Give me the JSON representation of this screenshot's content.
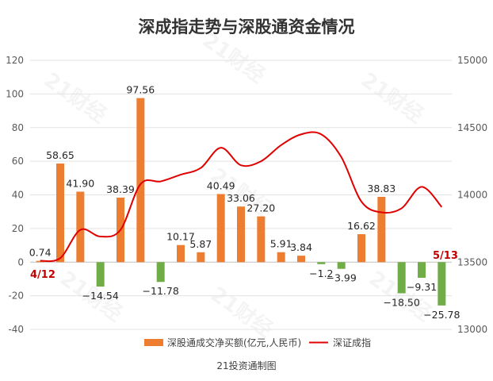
{
  "chart_data": {
    "type": "bar+line",
    "title": "深成指走势与深股通资金情况",
    "watermark": "21财经",
    "credit": "21投资通制图",
    "y_left": {
      "min": -40,
      "max": 120,
      "step": 20,
      "ticks": [
        "-40",
        "-20",
        "0",
        "20",
        "40",
        "60",
        "80",
        "100",
        "120"
      ]
    },
    "y_right": {
      "min": 13000,
      "max": 15000,
      "step": 500,
      "ticks": [
        "13000",
        "13500",
        "14000",
        "14500",
        "15000"
      ]
    },
    "bar_series": {
      "name": "深股通成交净买额(亿元,人民币)",
      "colors": {
        "positive": "#ed7d31",
        "negative": "#70ad47"
      },
      "values": [
        0.74,
        58.65,
        41.9,
        -14.54,
        38.39,
        97.56,
        -11.78,
        10.17,
        5.87,
        40.49,
        33.06,
        27.2,
        5.91,
        3.84,
        -1.2,
        -3.99,
        16.62,
        38.83,
        -18.5,
        -9.31,
        -25.78
      ],
      "labels": [
        "0.74",
        "58.65",
        "41.90",
        "−14.54",
        "38.39",
        "97.56",
        "−11.78",
        "10.17",
        "5.87",
        "40.49",
        "33.06",
        "27.20",
        "5.91",
        "3.84",
        "−1.2",
        "−3.99",
        "16.62",
        "38.83",
        "−18.50",
        "−9.31",
        "−25.78"
      ]
    },
    "line_series": {
      "name": "深证成指",
      "color": "#e00000",
      "values": [
        13510,
        13530,
        13740,
        13690,
        13740,
        14080,
        14100,
        14150,
        14200,
        14350,
        14220,
        14250,
        14370,
        14450,
        14450,
        14280,
        13950,
        13870,
        13900,
        14060,
        13910
      ]
    },
    "date_labels": {
      "start": "4/12",
      "end": "5/13"
    }
  }
}
